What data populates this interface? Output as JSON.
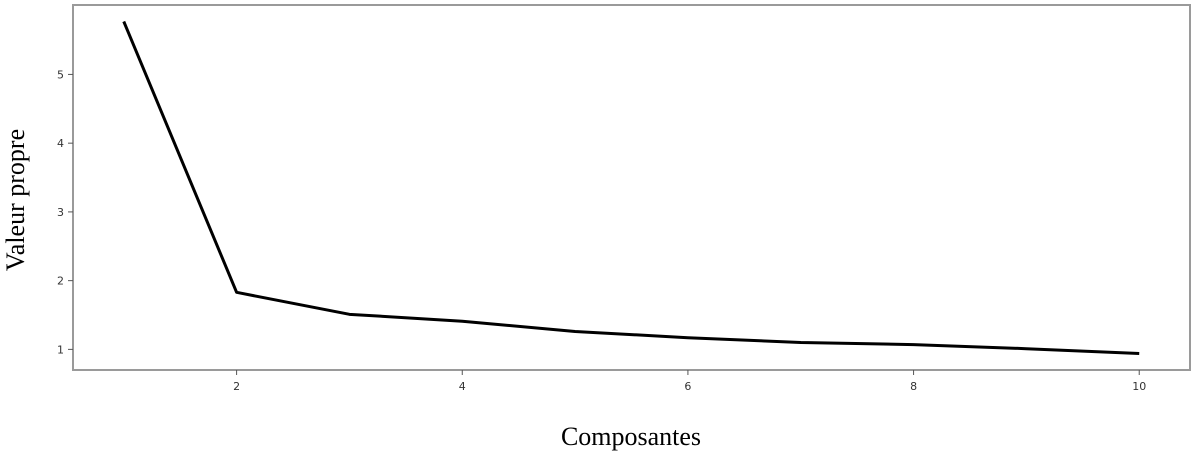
{
  "chart_data": {
    "type": "line",
    "x_label": "Composantes",
    "y_label": "Valeur propre",
    "x": [
      1,
      2,
      3,
      4,
      5,
      6,
      7,
      8,
      9,
      10
    ],
    "series": [
      {
        "color": "#000000",
        "values": [
          5.77,
          1.83,
          1.51,
          1.41,
          1.26,
          1.17,
          1.1,
          1.07,
          1.01,
          0.94
        ]
      }
    ],
    "xlim": [
      0.55,
      10.45
    ],
    "xticks": [
      2,
      4,
      6,
      8,
      10
    ],
    "ylim": [
      0.7,
      6.01
    ],
    "yticks": [
      1,
      2,
      3,
      4,
      5
    ],
    "grid": false
  }
}
